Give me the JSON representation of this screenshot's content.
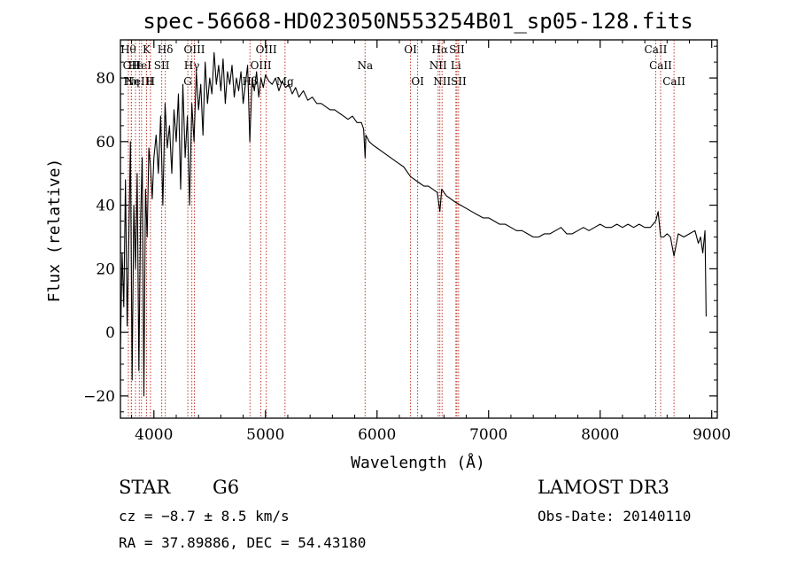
{
  "chart_data": {
    "type": "line",
    "title": "spec-56668-HD023050N553254B01_sp05-128.fits",
    "xlabel": "Wavelength (Å)",
    "ylabel": "Flux (relative)",
    "xlim": [
      3700,
      9050
    ],
    "ylim": [
      -27,
      92
    ],
    "xticks": [
      4000,
      5000,
      6000,
      7000,
      8000,
      9000
    ],
    "yticks": [
      -20,
      0,
      20,
      40,
      60,
      80
    ],
    "series": [
      {
        "name": "flux",
        "x": [
          3700,
          3715,
          3730,
          3745,
          3760,
          3775,
          3790,
          3805,
          3820,
          3835,
          3850,
          3865,
          3880,
          3895,
          3910,
          3925,
          3940,
          3955,
          3970,
          3985,
          4000,
          4020,
          4040,
          4060,
          4080,
          4100,
          4120,
          4140,
          4160,
          4180,
          4200,
          4220,
          4240,
          4260,
          4280,
          4300,
          4320,
          4340,
          4360,
          4380,
          4400,
          4420,
          4440,
          4460,
          4480,
          4500,
          4520,
          4540,
          4560,
          4580,
          4600,
          4620,
          4640,
          4660,
          4680,
          4700,
          4720,
          4740,
          4760,
          4780,
          4800,
          4820,
          4840,
          4860,
          4880,
          4900,
          4920,
          4940,
          4960,
          4980,
          5000,
          5030,
          5060,
          5090,
          5120,
          5150,
          5180,
          5210,
          5240,
          5270,
          5300,
          5340,
          5380,
          5420,
          5460,
          5500,
          5540,
          5580,
          5620,
          5660,
          5700,
          5740,
          5780,
          5820,
          5860,
          5880,
          5893,
          5900,
          5930,
          5960,
          6000,
          6040,
          6080,
          6120,
          6160,
          6200,
          6240,
          6280,
          6300,
          6340,
          6380,
          6420,
          6460,
          6500,
          6540,
          6563,
          6580,
          6620,
          6660,
          6700,
          6750,
          6800,
          6850,
          6900,
          6950,
          7000,
          7050,
          7100,
          7150,
          7200,
          7250,
          7300,
          7350,
          7400,
          7450,
          7500,
          7550,
          7600,
          7650,
          7700,
          7750,
          7800,
          7850,
          7900,
          7950,
          8000,
          8050,
          8100,
          8150,
          8200,
          8250,
          8300,
          8350,
          8400,
          8450,
          8498,
          8520,
          8542,
          8570,
          8600,
          8630,
          8662,
          8700,
          8750,
          8800,
          8850,
          8880,
          8900,
          8920,
          8940,
          8950
        ],
        "y": [
          -5,
          25,
          8,
          48,
          2,
          28,
          60,
          -15,
          40,
          20,
          50,
          -12,
          35,
          55,
          -20,
          45,
          30,
          58,
          52,
          42,
          55,
          62,
          50,
          68,
          40,
          72,
          58,
          65,
          50,
          70,
          60,
          75,
          45,
          78,
          55,
          68,
          40,
          72,
          60,
          82,
          70,
          78,
          62,
          85,
          72,
          80,
          75,
          88,
          78,
          84,
          76,
          86,
          72,
          82,
          78,
          84,
          74,
          80,
          76,
          82,
          72,
          78,
          84,
          60,
          80,
          76,
          82,
          74,
          80,
          77,
          81,
          79,
          78,
          80,
          76,
          79,
          77,
          78,
          75,
          77,
          74,
          76,
          73,
          74,
          72,
          72,
          71,
          70,
          70,
          69,
          68,
          67,
          68,
          66,
          66,
          64,
          55,
          62,
          60,
          59,
          58,
          57,
          56,
          55,
          54,
          53,
          52,
          50,
          49,
          48,
          47,
          46,
          46,
          45,
          44,
          38,
          45,
          43,
          42,
          41,
          40,
          39,
          38,
          37,
          36,
          36,
          35,
          34,
          34,
          33,
          32,
          32,
          31,
          30,
          30,
          31,
          31,
          32,
          33,
          31,
          31,
          32,
          33,
          32,
          33,
          34,
          33,
          33,
          34,
          33,
          34,
          33,
          34,
          33,
          33,
          35,
          38,
          30,
          30,
          31,
          30,
          24,
          31,
          30,
          31,
          32,
          28,
          30,
          25,
          32,
          5
        ]
      }
    ],
    "line_markers": [
      {
        "w": 3771,
        "label": "Hθ",
        "row": 0
      },
      {
        "w": 3798,
        "label": "OII",
        "row": 1
      },
      {
        "w": 3798,
        "label": "Hη",
        "row": 2
      },
      {
        "w": 3835,
        "label": "Hε",
        "row": 1
      },
      {
        "w": 3869,
        "label": "NeIII",
        "row": 2
      },
      {
        "w": 3889,
        "label": "HeI",
        "row": 1
      },
      {
        "w": 3934,
        "label": "K",
        "row": 0
      },
      {
        "w": 3969,
        "label": "H",
        "row": 2
      },
      {
        "w": 4070,
        "label": "SII",
        "row": 1
      },
      {
        "w": 4102,
        "label": "Hδ",
        "row": 0
      },
      {
        "w": 4304,
        "label": "G",
        "row": 2
      },
      {
        "w": 4340,
        "label": "Hγ",
        "row": 1
      },
      {
        "w": 4363,
        "label": "OIII",
        "row": 0
      },
      {
        "w": 4861,
        "label": "Hβ",
        "row": 2
      },
      {
        "w": 4959,
        "label": "OIII",
        "row": 1
      },
      {
        "w": 5007,
        "label": "OIII",
        "row": 0
      },
      {
        "w": 5175,
        "label": "Mg",
        "row": 2
      },
      {
        "w": 5893,
        "label": "Na",
        "row": 1
      },
      {
        "w": 6300,
        "label": "OI",
        "row": 0
      },
      {
        "w": 6364,
        "label": "OI",
        "row": 2
      },
      {
        "w": 6548,
        "label": "NII",
        "row": 1
      },
      {
        "w": 6563,
        "label": "Hα",
        "row": 0
      },
      {
        "w": 6583,
        "label": "NII",
        "row": 2
      },
      {
        "w": 6707,
        "label": "Li",
        "row": 1
      },
      {
        "w": 6716,
        "label": "SII",
        "row": 0
      },
      {
        "w": 6731,
        "label": "SII",
        "row": 2
      },
      {
        "w": 8498,
        "label": "CaII",
        "row": 0
      },
      {
        "w": 8542,
        "label": "CaII",
        "row": 1
      },
      {
        "w": 8662,
        "label": "CaII",
        "row": 2
      }
    ]
  },
  "info": {
    "class_label": "STAR",
    "subclass": "G6",
    "cz_line": "cz = −8.7 ± 8.5 km/s",
    "radec_line": "RA =  37.89886, DEC =  54.43180",
    "survey": "LAMOST DR3",
    "obs_date": "Obs-Date: 20140110"
  }
}
